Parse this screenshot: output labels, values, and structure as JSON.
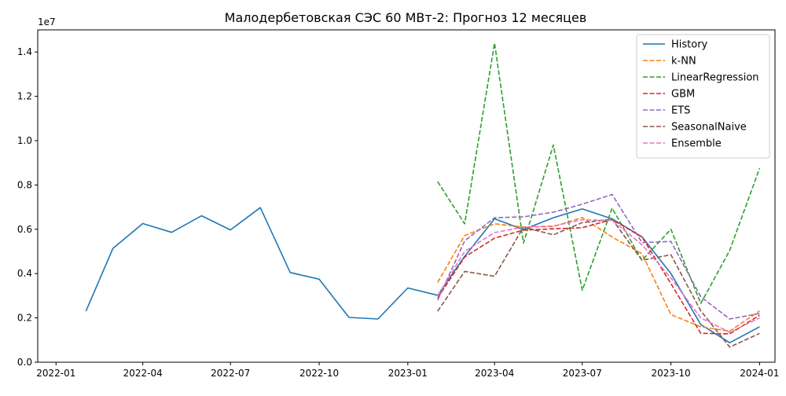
{
  "chart_data": {
    "type": "line",
    "title": "Малодербетовская СЭС 60 МВт-2: Прогноз 12 месяцев",
    "xlabel": "",
    "ylabel": "",
    "y_multiplier_label": "1e7",
    "xlim": [
      "2021-12-13",
      "2024-01-17"
    ],
    "ylim": [
      0,
      1.5
    ],
    "x_ticks": [
      "2022-01-01",
      "2022-04-01",
      "2022-07-01",
      "2022-10-01",
      "2023-01-01",
      "2023-04-01",
      "2023-07-01",
      "2023-10-01",
      "2024-01-01"
    ],
    "x_tick_labels": [
      "2022-01",
      "2022-04",
      "2022-07",
      "2022-10",
      "2023-01",
      "2023-04",
      "2023-07",
      "2023-10",
      "2024-01"
    ],
    "y_ticks": [
      0,
      0.2,
      0.4,
      0.6,
      0.8,
      1.0,
      1.2,
      1.4
    ],
    "y_tick_labels": [
      "0.0",
      "0.2",
      "0.4",
      "0.6",
      "0.8",
      "1.0",
      "1.2",
      "1.4"
    ],
    "grid": false,
    "legend_position": "top-right",
    "series": [
      {
        "name": "History",
        "color": "#1f77b4",
        "dash": "solid",
        "x": [
          "2022-02-01",
          "2022-03-01",
          "2022-04-01",
          "2022-05-01",
          "2022-06-01",
          "2022-07-01",
          "2022-08-01",
          "2022-09-01",
          "2022-10-01",
          "2022-11-01",
          "2022-12-01",
          "2023-01-01",
          "2023-02-01",
          "2023-03-01",
          "2023-04-01",
          "2023-05-01",
          "2023-06-01",
          "2023-07-01",
          "2023-08-01",
          "2023-09-01",
          "2023-10-01",
          "2023-11-01",
          "2023-12-01",
          "2024-01-01"
        ],
        "y": [
          0.23,
          0.513,
          0.626,
          0.586,
          0.661,
          0.597,
          0.698,
          0.405,
          0.375,
          0.202,
          0.195,
          0.335,
          0.302,
          0.478,
          0.647,
          0.599,
          0.652,
          0.692,
          0.647,
          0.566,
          0.4,
          0.17,
          0.088,
          0.16
        ]
      },
      {
        "name": "k-NN",
        "color": "#ff7f0e",
        "dash": "dashed",
        "x": [
          "2023-02-01",
          "2023-03-01",
          "2023-04-01",
          "2023-05-01",
          "2023-06-01",
          "2023-07-01",
          "2023-08-01",
          "2023-09-01",
          "2023-10-01",
          "2023-11-01",
          "2023-12-01",
          "2024-01-01"
        ],
        "y": [
          0.36,
          0.572,
          0.625,
          0.61,
          0.612,
          0.653,
          0.565,
          0.49,
          0.215,
          0.16,
          0.14,
          0.232
        ]
      },
      {
        "name": "LinearRegression",
        "color": "#2ca02c",
        "dash": "dashed",
        "x": [
          "2023-02-01",
          "2023-03-01",
          "2023-04-01",
          "2023-05-01",
          "2023-06-01",
          "2023-07-01",
          "2023-08-01",
          "2023-09-01",
          "2023-10-01",
          "2023-11-01",
          "2023-12-01",
          "2024-01-01"
        ],
        "y": [
          0.815,
          0.625,
          1.44,
          0.538,
          0.98,
          0.325,
          0.695,
          0.46,
          0.6,
          0.265,
          0.505,
          0.875
        ]
      },
      {
        "name": "GBM",
        "color": "#d62728",
        "dash": "dashed",
        "x": [
          "2023-02-01",
          "2023-03-01",
          "2023-04-01",
          "2023-05-01",
          "2023-06-01",
          "2023-07-01",
          "2023-08-01",
          "2023-09-01",
          "2023-10-01",
          "2023-11-01",
          "2023-12-01",
          "2024-01-01"
        ],
        "y": [
          0.29,
          0.475,
          0.56,
          0.596,
          0.602,
          0.607,
          0.644,
          0.565,
          0.355,
          0.13,
          0.128,
          0.212
        ]
      },
      {
        "name": "ETS",
        "color": "#9467bd",
        "dash": "dashed",
        "x": [
          "2023-02-01",
          "2023-03-01",
          "2023-04-01",
          "2023-05-01",
          "2023-06-01",
          "2023-07-01",
          "2023-08-01",
          "2023-09-01",
          "2023-10-01",
          "2023-11-01",
          "2023-12-01",
          "2024-01-01"
        ],
        "y": [
          0.28,
          0.548,
          0.652,
          0.656,
          0.677,
          0.713,
          0.757,
          0.54,
          0.545,
          0.295,
          0.195,
          0.22
        ]
      },
      {
        "name": "SeasonalNaive",
        "color": "#8c564b",
        "dash": "dashed",
        "x": [
          "2023-02-01",
          "2023-03-01",
          "2023-04-01",
          "2023-05-01",
          "2023-06-01",
          "2023-07-01",
          "2023-08-01",
          "2023-09-01",
          "2023-10-01",
          "2023-11-01",
          "2023-12-01",
          "2024-01-01"
        ],
        "y": [
          0.23,
          0.41,
          0.388,
          0.61,
          0.575,
          0.63,
          0.645,
          0.46,
          0.485,
          0.232,
          0.068,
          0.13
        ]
      },
      {
        "name": "Ensemble",
        "color": "#e377c2",
        "dash": "dashed",
        "x": [
          "2023-02-01",
          "2023-03-01",
          "2023-04-01",
          "2023-05-01",
          "2023-06-01",
          "2023-07-01",
          "2023-08-01",
          "2023-09-01",
          "2023-10-01",
          "2023-11-01",
          "2023-12-01",
          "2024-01-01"
        ],
        "y": [
          0.3,
          0.5,
          0.585,
          0.61,
          0.615,
          0.643,
          0.64,
          0.53,
          0.38,
          0.2,
          0.135,
          0.2
        ]
      }
    ]
  }
}
